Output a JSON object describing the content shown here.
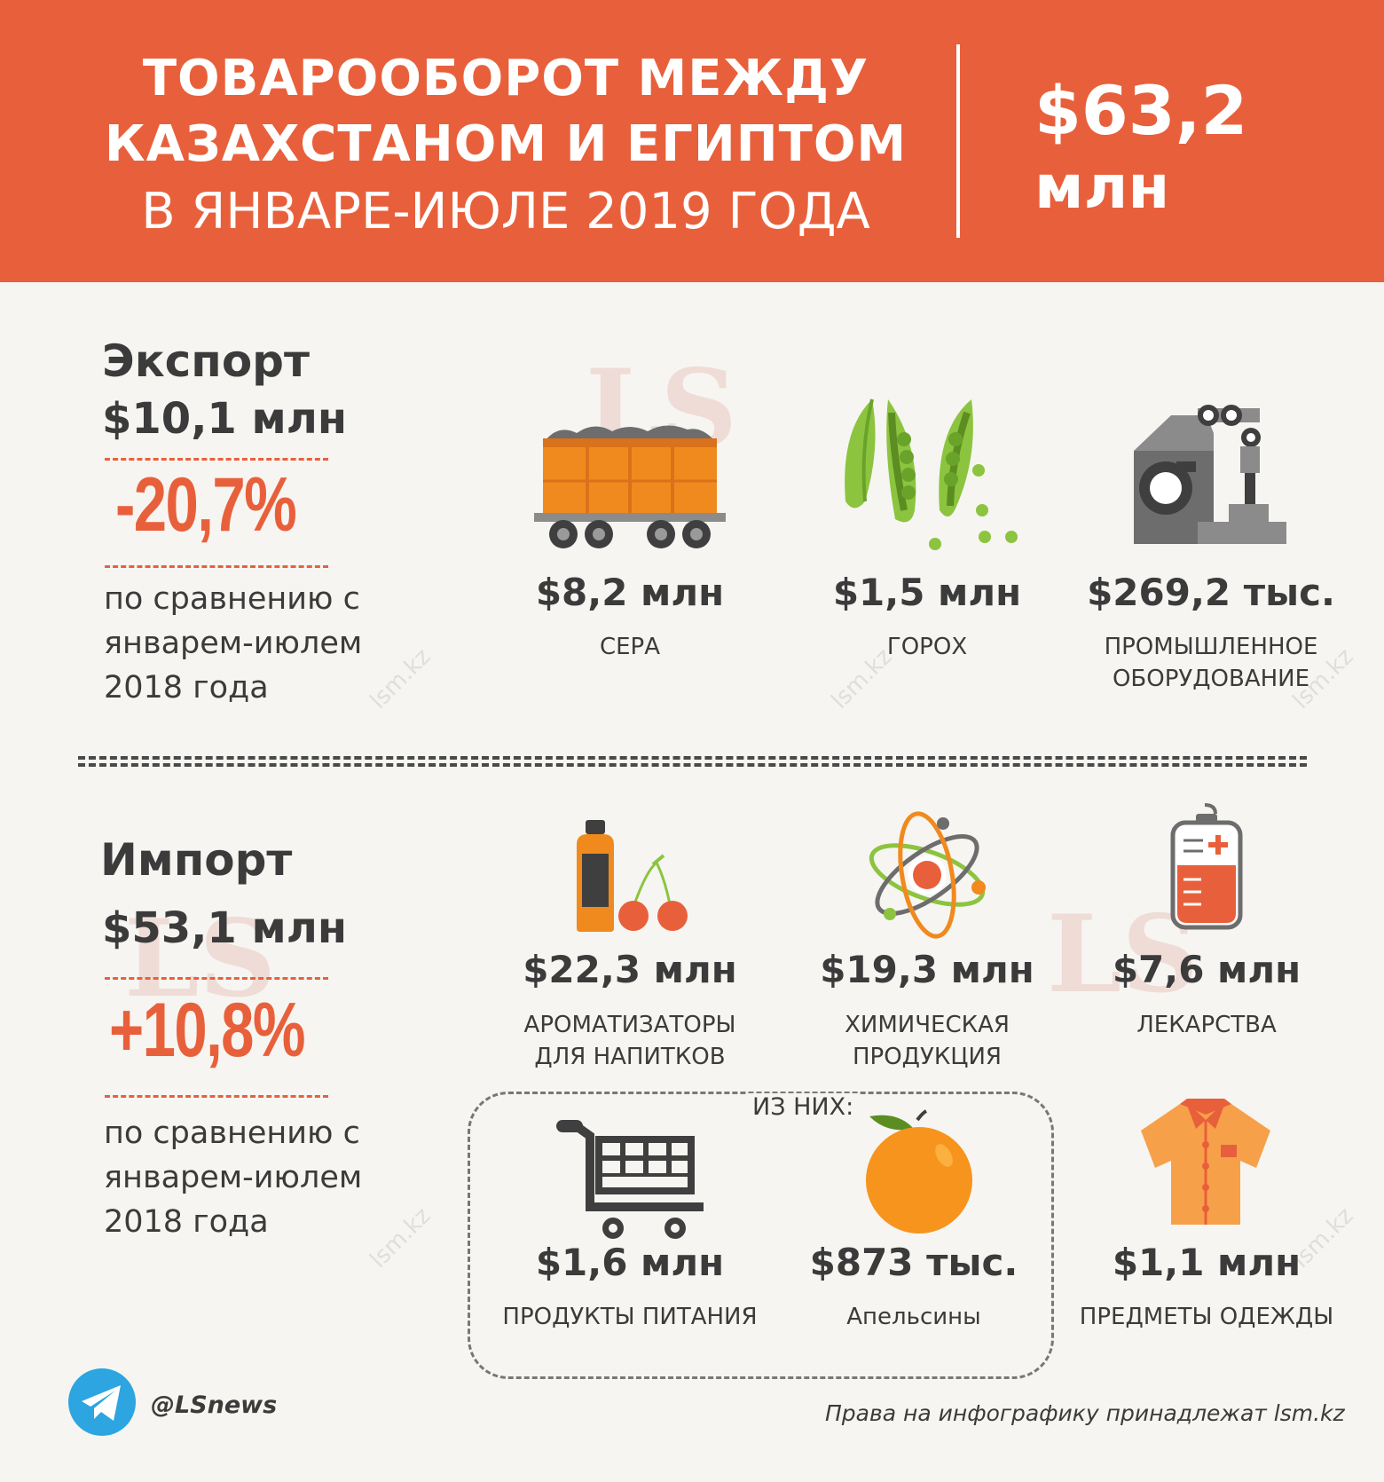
{
  "header": {
    "title_line1": "ТОВАРООБОРОТ МЕЖДУ",
    "title_line2": "КАЗАХСТАНОМ И ЕГИПТОМ",
    "title_line3": "В ЯНВАРЕ-ИЮЛЕ 2019 ГОДА",
    "total_value": "$63,2",
    "total_unit": "млн"
  },
  "export": {
    "title": "Экспорт",
    "amount": "$10,1 млн",
    "change": "-20,7%",
    "comparison_line1": "по сравнению с",
    "comparison_line2": "январем-июлем",
    "comparison_line3": "2018 года",
    "items": [
      {
        "value": "$8,2 млн",
        "label": "СЕРА",
        "icon": "train-wagon-icon"
      },
      {
        "value": "$1,5 млн",
        "label": "ГОРОХ",
        "icon": "peas-icon"
      },
      {
        "value": "$269,2 тыс.",
        "label_line1": "ПРОМЫШЛЕННОЕ",
        "label_line2": "ОБОРУДОВАНИЕ",
        "icon": "robotic-arm-icon"
      }
    ]
  },
  "import": {
    "title": "Импорт",
    "amount": "$53,1 млн",
    "change": "+10,8%",
    "comparison_line1": "по сравнению с",
    "comparison_line2": "январем-июлем",
    "comparison_line3": "2018 года",
    "items": [
      {
        "value": "$22,3 млн",
        "label_line1": "АРОМАТИЗАТОРЫ",
        "label_line2": "ДЛЯ НАПИТКОВ",
        "icon": "bottle-cherries-icon"
      },
      {
        "value": "$19,3 млн",
        "label_line1": "ХИМИЧЕСКАЯ",
        "label_line2": "ПРОДУКЦИЯ",
        "icon": "atom-icon"
      },
      {
        "value": "$7,6 млн",
        "label": "ЛЕКАРСТВА",
        "icon": "iv-bag-icon"
      },
      {
        "value": "$1,6 млн",
        "label": "ПРОДУКТЫ ПИТАНИЯ",
        "icon": "shopping-cart-icon"
      },
      {
        "value": "$873 тыс.",
        "label": "Апельсины",
        "icon": "orange-icon"
      },
      {
        "value": "$1,1 млн",
        "label": "ПРЕДМЕТЫ ОДЕЖДЫ",
        "icon": "shirt-icon"
      }
    ],
    "subgroup_label": "ИЗ НИХ:"
  },
  "footer": {
    "telegram_handle": "@LSnews",
    "rights": "Права на инфографику принадлежат lsm.kz"
  },
  "watermark": {
    "logo": "LS",
    "site": "lsm.kz"
  },
  "colors": {
    "accent": "#e8603b",
    "text": "#3b3b3b",
    "background": "#f6f5f1"
  }
}
